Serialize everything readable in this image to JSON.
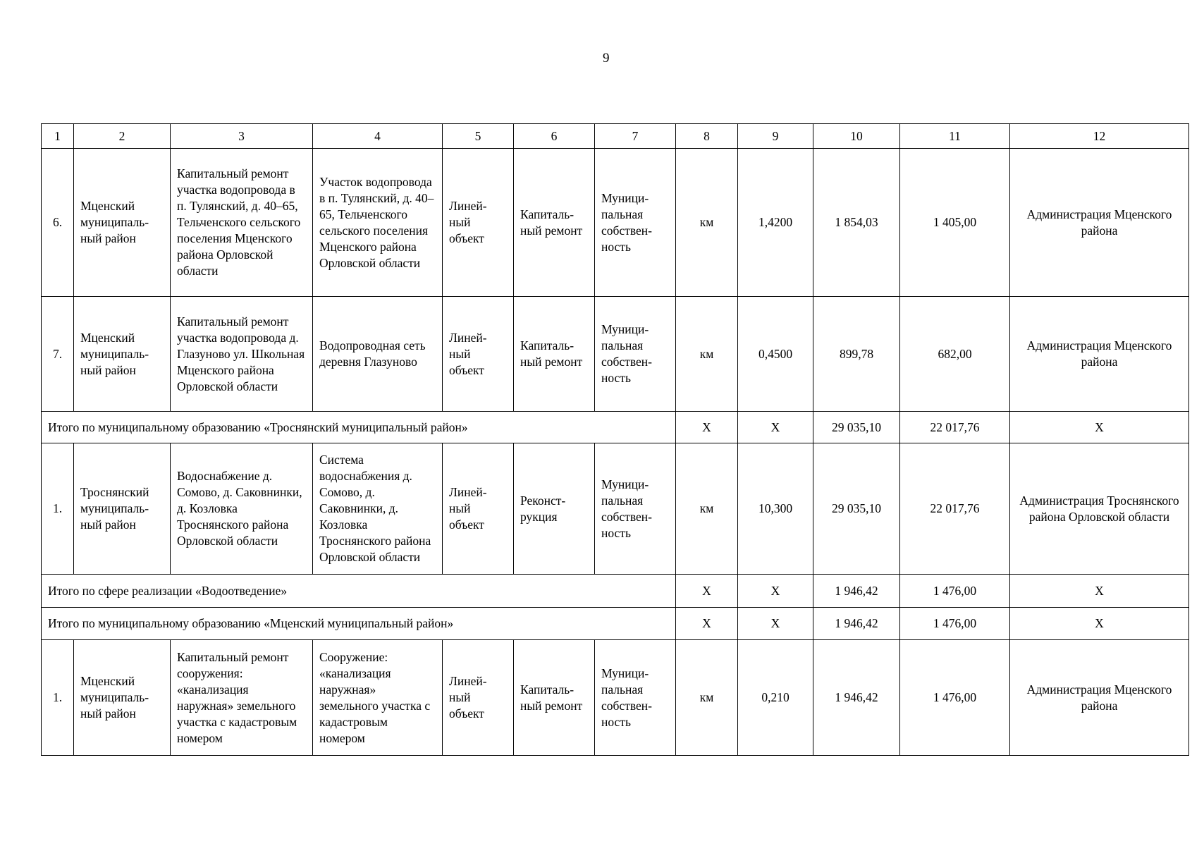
{
  "page_number": "9",
  "table": {
    "header": [
      "1",
      "2",
      "3",
      "4",
      "5",
      "6",
      "7",
      "8",
      "9",
      "10",
      "11",
      "12"
    ],
    "rows": [
      {
        "type": "item",
        "cells": [
          "6.",
          "Мценский муниципаль-ный район",
          "Капитальный ремонт участка водопровода в п. Тулянский, д. 40–65, Тельченского сельского поселения Мценского района Орловской области",
          "Участок водопровода в п. Тулянский, д. 40–65, Тельченского сельского поселения Мценского района Орловской области",
          "Линей-ный объект",
          "Капиталь-ный ремонт",
          "Муници-пальная собствен-ность",
          "км",
          "1,4200",
          "1 854,03",
          "1 405,00",
          "Администрация Мценского района"
        ]
      },
      {
        "type": "item",
        "cells": [
          "7.",
          "Мценский муниципаль-ный район",
          "Капитальный ремонт участка водопровода д. Глазуново ул. Школьная Мценского района Орловской области",
          "Водопроводная сеть деревня Глазуново",
          "Линей-ный объект",
          "Капиталь-ный ремонт",
          "Муници-пальная собствен-ность",
          "км",
          "0,4500",
          "899,78",
          "682,00",
          "Администрация Мценского района"
        ]
      },
      {
        "type": "total",
        "label": "Итого по муниципальному образованию «Троснянский муниципальный район»",
        "cells": [
          "Х",
          "Х",
          "29 035,10",
          "22 017,76",
          "Х"
        ]
      },
      {
        "type": "item",
        "cells": [
          "1.",
          "Троснянский муниципаль-ный район",
          "Водоснабжение д. Сомово, д. Саковнинки, д. Козловка Троснянского района Орловской области",
          "Система водоснабжения д. Сомово, д. Саковнинки, д. Козловка Троснянского района Орловской области",
          "Линей-ный объект",
          "Реконст-рукция",
          "Муници-пальная собствен-ность",
          "км",
          "10,300",
          "29 035,10",
          "22 017,76",
          "Администрация Троснянского района Орловской области"
        ]
      },
      {
        "type": "total",
        "label": "Итого по сфере реализации «Водоотведение»",
        "cells": [
          "Х",
          "Х",
          "1 946,42",
          "1 476,00",
          "Х"
        ]
      },
      {
        "type": "total",
        "label": "Итого по муниципальному образованию «Мценский муниципальный район»",
        "cells": [
          "Х",
          "Х",
          "1 946,42",
          "1 476,00",
          "Х"
        ]
      },
      {
        "type": "item",
        "cells": [
          "1.",
          "Мценский муниципаль-ный район",
          "Капитальный ремонт сооружения: «канализация наружная» земельного участка с кадастровым номером",
          "Сооружение: «канализация наружная» земельного участка с кадастровым номером",
          "Линей-ный объект",
          "Капиталь-ный ремонт",
          "Муници-пальная собствен-ность",
          "км",
          "0,210",
          "1 946,42",
          "1 476,00",
          "Администрация Мценского района"
        ]
      }
    ]
  }
}
